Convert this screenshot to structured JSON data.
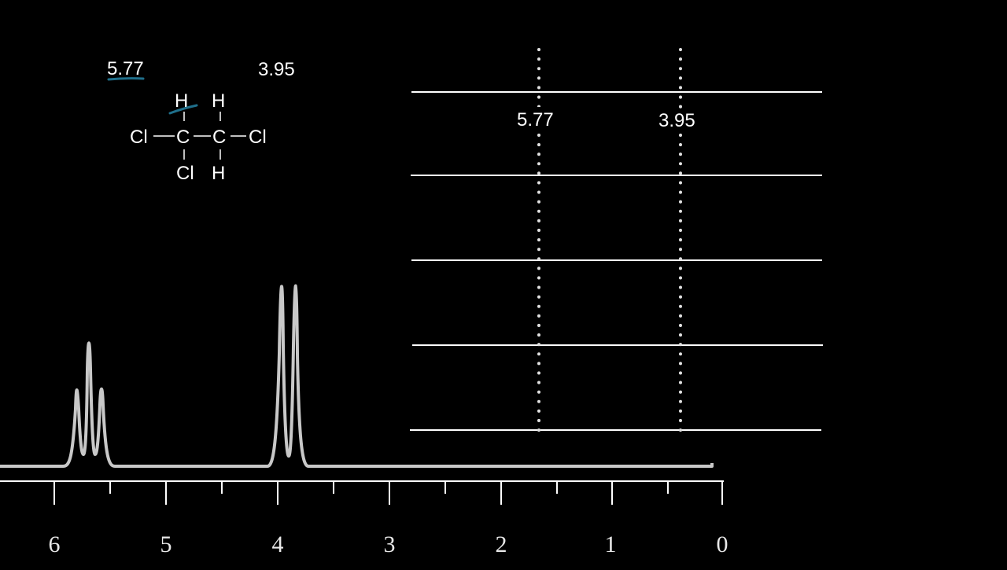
{
  "molecule": {
    "atoms": {
      "h1": "H",
      "h2": "H",
      "cl_left": "Cl",
      "c1": "C",
      "c2": "C",
      "cl_right": "Cl",
      "cl_bottom": "Cl",
      "h3": "H"
    }
  },
  "annotations": {
    "shift_a": "5.77",
    "shift_b": "3.95"
  },
  "table": {
    "col_a_label": "5.77",
    "col_b_label": "3.95"
  },
  "axis": {
    "ticks": [
      "6",
      "5",
      "4",
      "3",
      "2",
      "1",
      "0"
    ]
  },
  "colors": {
    "background": "#000000",
    "foreground": "#ffffff",
    "spectrum": "#c8c8c8",
    "highlight": "#1f6f8b"
  }
}
